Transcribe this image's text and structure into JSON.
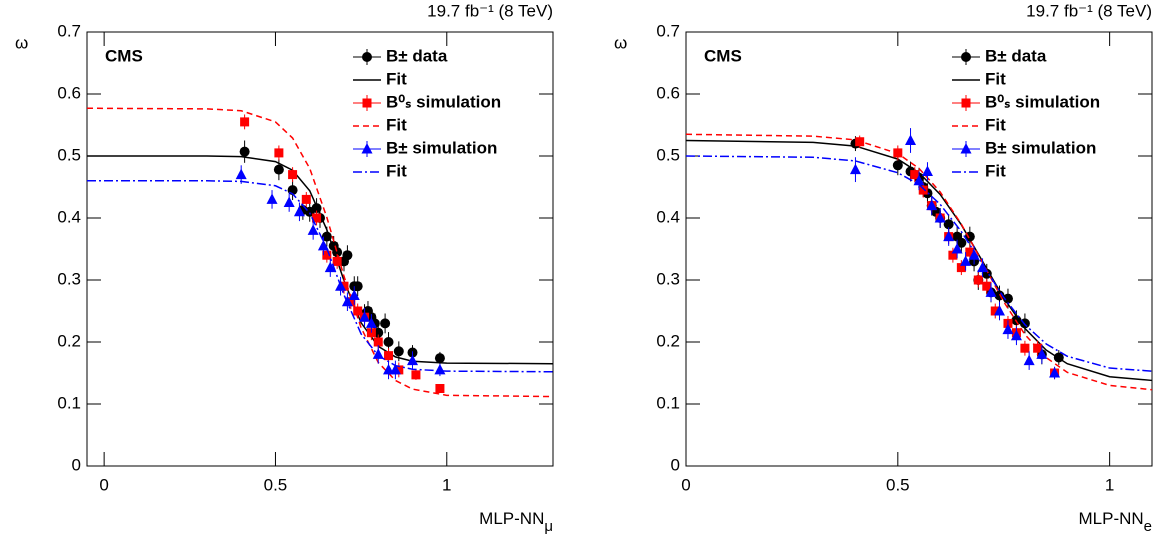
{
  "chart_data": [
    {
      "type": "scatter",
      "lumi": "19.7 fb⁻¹ (8 TeV)",
      "label": "CMS",
      "y_label": "ω",
      "x_label": "MLP-NN",
      "x_label_sub": "μ",
      "xlim": [
        -0.05,
        1.31
      ],
      "ylim": [
        0,
        0.7
      ],
      "xticks": [
        0,
        0.5,
        1
      ],
      "yticks": [
        0,
        0.1,
        0.2,
        0.3,
        0.4,
        0.5,
        0.6,
        0.7
      ],
      "series": [
        {
          "name": "B± data",
          "color": "#000000",
          "marker": "circle",
          "x": [
            0.41,
            0.51,
            0.55,
            0.58,
            0.6,
            0.62,
            0.63,
            0.65,
            0.67,
            0.68,
            0.7,
            0.71,
            0.73,
            0.74,
            0.76,
            0.77,
            0.78,
            0.79,
            0.8,
            0.82,
            0.83,
            0.86,
            0.9,
            0.98
          ],
          "values": [
            0.507,
            0.478,
            0.445,
            0.413,
            0.41,
            0.416,
            0.4,
            0.37,
            0.355,
            0.345,
            0.33,
            0.34,
            0.29,
            0.29,
            0.245,
            0.25,
            0.24,
            0.23,
            0.215,
            0.23,
            0.2,
            0.185,
            0.183,
            0.174
          ],
          "errors": [
            0.018,
            0.017,
            0.016,
            0.016,
            0.016,
            0.016,
            0.016,
            0.016,
            0.016,
            0.016,
            0.016,
            0.016,
            0.016,
            0.016,
            0.016,
            0.016,
            0.016,
            0.016,
            0.016,
            0.016,
            0.016,
            0.016,
            0.012,
            0.01
          ]
        },
        {
          "name": "Fit",
          "color": "#000000",
          "dash": "solid",
          "x": [
            -0.05,
            0.3,
            0.4,
            0.5,
            0.55,
            0.6,
            0.65,
            0.7,
            0.75,
            0.8,
            0.85,
            0.9,
            1.0,
            1.31
          ],
          "values": [
            0.5,
            0.5,
            0.499,
            0.491,
            0.477,
            0.444,
            0.381,
            0.299,
            0.231,
            0.193,
            0.176,
            0.169,
            0.166,
            0.165
          ]
        },
        {
          "name": "B⁰ₛ simulation",
          "color": "#ff0000",
          "marker": "square",
          "x": [
            0.41,
            0.51,
            0.55,
            0.59,
            0.62,
            0.65,
            0.68,
            0.7,
            0.72,
            0.74,
            0.76,
            0.78,
            0.8,
            0.83,
            0.86,
            0.91,
            0.98
          ],
          "values": [
            0.555,
            0.505,
            0.47,
            0.43,
            0.4,
            0.34,
            0.33,
            0.29,
            0.265,
            0.25,
            0.24,
            0.215,
            0.2,
            0.178,
            0.155,
            0.147,
            0.125
          ],
          "errors": [
            0.012,
            0.012,
            0.012,
            0.012,
            0.012,
            0.012,
            0.012,
            0.012,
            0.012,
            0.012,
            0.012,
            0.012,
            0.012,
            0.012,
            0.012,
            0.008,
            0.006
          ]
        },
        {
          "name": "Fit",
          "color": "#ff0000",
          "dash": "dashed",
          "x": [
            -0.05,
            0.3,
            0.4,
            0.5,
            0.55,
            0.6,
            0.65,
            0.7,
            0.75,
            0.8,
            0.85,
            0.9,
            1.0,
            1.31
          ],
          "values": [
            0.577,
            0.576,
            0.573,
            0.555,
            0.529,
            0.48,
            0.401,
            0.306,
            0.223,
            0.167,
            0.138,
            0.124,
            0.114,
            0.112
          ]
        },
        {
          "name": "B± simulation",
          "color": "#0000ff",
          "marker": "triangle",
          "x": [
            0.4,
            0.49,
            0.54,
            0.57,
            0.61,
            0.64,
            0.66,
            0.69,
            0.71,
            0.73,
            0.76,
            0.78,
            0.8,
            0.83,
            0.85,
            0.9,
            0.98
          ],
          "values": [
            0.47,
            0.43,
            0.425,
            0.41,
            0.38,
            0.355,
            0.32,
            0.29,
            0.265,
            0.275,
            0.24,
            0.23,
            0.18,
            0.155,
            0.155,
            0.17,
            0.155
          ],
          "errors": [
            0.015,
            0.015,
            0.015,
            0.015,
            0.015,
            0.015,
            0.015,
            0.015,
            0.015,
            0.015,
            0.015,
            0.015,
            0.015,
            0.015,
            0.015,
            0.015,
            0.01
          ]
        },
        {
          "name": "Fit",
          "color": "#0000ff",
          "dash": "dashdot",
          "x": [
            -0.05,
            0.3,
            0.4,
            0.5,
            0.55,
            0.6,
            0.65,
            0.7,
            0.75,
            0.8,
            0.85,
            0.9,
            1.0,
            1.31
          ],
          "values": [
            0.46,
            0.46,
            0.459,
            0.452,
            0.439,
            0.408,
            0.351,
            0.276,
            0.213,
            0.178,
            0.162,
            0.156,
            0.153,
            0.152
          ]
        }
      ]
    },
    {
      "type": "scatter",
      "lumi": "19.7 fb⁻¹ (8 TeV)",
      "label": "CMS",
      "y_label": "ω",
      "x_label": "MLP-NN",
      "x_label_sub": "e",
      "xlim": [
        0,
        1.1
      ],
      "ylim": [
        0,
        0.7
      ],
      "xticks": [
        0,
        0.5,
        1
      ],
      "yticks": [
        0,
        0.1,
        0.2,
        0.3,
        0.4,
        0.5,
        0.6,
        0.7
      ],
      "series": [
        {
          "name": "B± data",
          "color": "#000000",
          "marker": "circle",
          "x": [
            0.4,
            0.5,
            0.53,
            0.55,
            0.56,
            0.57,
            0.58,
            0.59,
            0.6,
            0.62,
            0.64,
            0.65,
            0.67,
            0.68,
            0.69,
            0.71,
            0.72,
            0.74,
            0.76,
            0.78,
            0.8,
            0.84,
            0.88
          ],
          "values": [
            0.52,
            0.485,
            0.475,
            0.465,
            0.45,
            0.44,
            0.42,
            0.41,
            0.4,
            0.39,
            0.37,
            0.36,
            0.37,
            0.33,
            0.3,
            0.31,
            0.28,
            0.275,
            0.27,
            0.235,
            0.23,
            0.18,
            0.175
          ],
          "errors": [
            0.012,
            0.016,
            0.016,
            0.016,
            0.016,
            0.016,
            0.016,
            0.016,
            0.016,
            0.016,
            0.016,
            0.016,
            0.016,
            0.016,
            0.016,
            0.016,
            0.016,
            0.016,
            0.016,
            0.016,
            0.016,
            0.016,
            0.012
          ]
        },
        {
          "name": "Fit",
          "color": "#000000",
          "dash": "solid",
          "x": [
            0,
            0.3,
            0.4,
            0.5,
            0.55,
            0.6,
            0.65,
            0.7,
            0.75,
            0.8,
            0.85,
            0.9,
            1.0,
            1.1
          ],
          "values": [
            0.525,
            0.522,
            0.516,
            0.495,
            0.473,
            0.438,
            0.389,
            0.33,
            0.271,
            0.222,
            0.187,
            0.165,
            0.144,
            0.138
          ]
        },
        {
          "name": "B⁰ₛ simulation",
          "color": "#ff0000",
          "marker": "square",
          "x": [
            0.41,
            0.5,
            0.54,
            0.56,
            0.58,
            0.6,
            0.62,
            0.63,
            0.65,
            0.67,
            0.69,
            0.71,
            0.73,
            0.76,
            0.78,
            0.8,
            0.83,
            0.87
          ],
          "values": [
            0.523,
            0.505,
            0.47,
            0.445,
            0.42,
            0.4,
            0.37,
            0.34,
            0.32,
            0.345,
            0.3,
            0.29,
            0.25,
            0.23,
            0.215,
            0.19,
            0.19,
            0.15
          ],
          "errors": [
            0.01,
            0.012,
            0.012,
            0.012,
            0.012,
            0.012,
            0.012,
            0.012,
            0.012,
            0.012,
            0.012,
            0.012,
            0.012,
            0.012,
            0.012,
            0.012,
            0.012,
            0.01
          ]
        },
        {
          "name": "Fit",
          "color": "#ff0000",
          "dash": "dashed",
          "x": [
            0,
            0.3,
            0.4,
            0.5,
            0.55,
            0.6,
            0.65,
            0.7,
            0.75,
            0.8,
            0.85,
            0.9,
            1.0,
            1.1
          ],
          "values": [
            0.535,
            0.532,
            0.526,
            0.504,
            0.48,
            0.442,
            0.39,
            0.328,
            0.265,
            0.212,
            0.175,
            0.151,
            0.13,
            0.123
          ]
        },
        {
          "name": "B± simulation",
          "color": "#0000ff",
          "marker": "triangle",
          "x": [
            0.4,
            0.53,
            0.55,
            0.57,
            0.58,
            0.6,
            0.62,
            0.64,
            0.66,
            0.68,
            0.7,
            0.72,
            0.74,
            0.76,
            0.78,
            0.81,
            0.84,
            0.87
          ],
          "values": [
            0.478,
            0.525,
            0.46,
            0.475,
            0.42,
            0.4,
            0.37,
            0.35,
            0.33,
            0.34,
            0.32,
            0.28,
            0.25,
            0.22,
            0.21,
            0.17,
            0.18,
            0.15
          ],
          "errors": [
            0.02,
            0.02,
            0.015,
            0.015,
            0.015,
            0.015,
            0.015,
            0.015,
            0.015,
            0.015,
            0.015,
            0.015,
            0.015,
            0.015,
            0.015,
            0.015,
            0.015,
            0.01
          ]
        },
        {
          "name": "Fit",
          "color": "#0000ff",
          "dash": "dashdot",
          "x": [
            0,
            0.3,
            0.4,
            0.5,
            0.55,
            0.6,
            0.65,
            0.7,
            0.75,
            0.8,
            0.85,
            0.9,
            1.0,
            1.1
          ],
          "values": [
            0.5,
            0.498,
            0.492,
            0.473,
            0.454,
            0.422,
            0.378,
            0.325,
            0.272,
            0.228,
            0.197,
            0.177,
            0.158,
            0.153
          ]
        }
      ]
    }
  ]
}
